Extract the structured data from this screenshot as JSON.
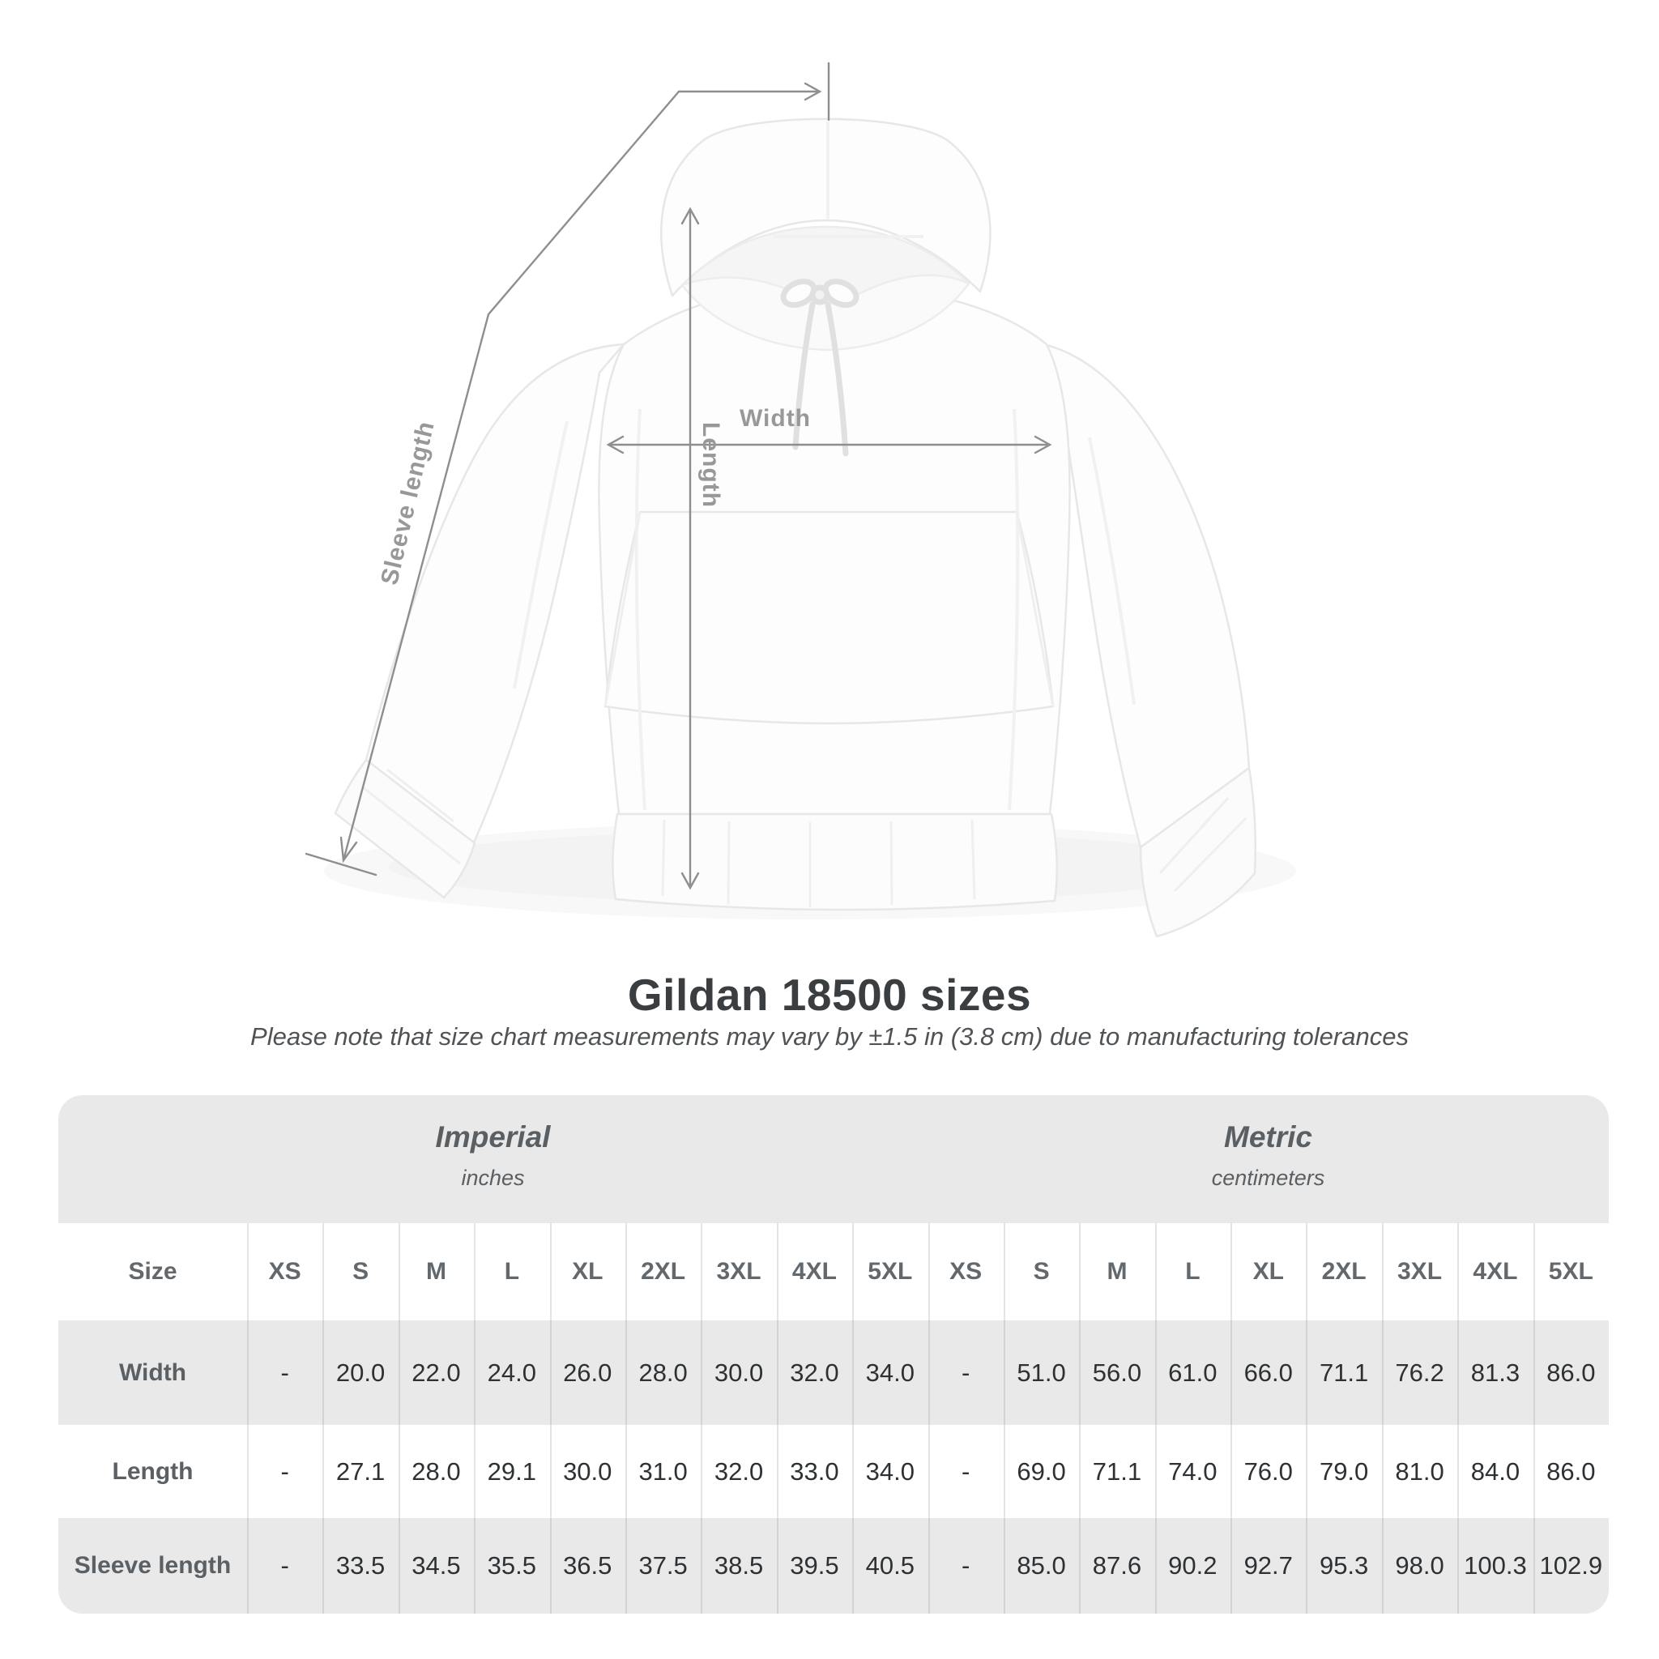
{
  "diagram": {
    "labels": {
      "length": "Length",
      "width": "Width",
      "sleeve": "Sleeve length"
    }
  },
  "heading": {
    "title": "Gildan 18500 sizes",
    "subtitle": "Please note that size chart measurements may vary by ±1.5 in (3.8 cm) due to manufacturing tolerances"
  },
  "size_table": {
    "corner_label": "Size",
    "groups": [
      {
        "system": "Imperial",
        "unit": "inches"
      },
      {
        "system": "Metric",
        "unit": "centimeters"
      }
    ],
    "size_columns": [
      "XS",
      "S",
      "M",
      "L",
      "XL",
      "2XL",
      "3XL",
      "4XL",
      "5XL",
      "XS",
      "S",
      "M",
      "L",
      "XL",
      "2XL",
      "3XL",
      "4XL",
      "5XL"
    ],
    "rows": [
      {
        "label": "Width",
        "values": [
          "-",
          "20.0",
          "22.0",
          "24.0",
          "26.0",
          "28.0",
          "30.0",
          "32.0",
          "34.0",
          "-",
          "51.0",
          "56.0",
          "61.0",
          "66.0",
          "71.1",
          "76.2",
          "81.3",
          "86.0"
        ]
      },
      {
        "label": "Length",
        "values": [
          "-",
          "27.1",
          "28.0",
          "29.1",
          "30.0",
          "31.0",
          "32.0",
          "33.0",
          "34.0",
          "-",
          "69.0",
          "71.1",
          "74.0",
          "76.0",
          "79.0",
          "81.0",
          "84.0",
          "86.0"
        ]
      },
      {
        "label": "Sleeve length",
        "values": [
          "-",
          "33.5",
          "34.5",
          "35.5",
          "36.5",
          "37.5",
          "38.5",
          "39.5",
          "40.5",
          "-",
          "85.0",
          "87.6",
          "90.2",
          "92.7",
          "95.3",
          "98.0",
          "100.3",
          "102.9"
        ]
      }
    ]
  },
  "chart_data": {
    "type": "table",
    "title": "Gildan 18500 sizes",
    "note": "Measurements may vary by ±1.5 in (3.8 cm) due to manufacturing tolerances",
    "sizes": [
      "XS",
      "S",
      "M",
      "L",
      "XL",
      "2XL",
      "3XL",
      "4XL",
      "5XL"
    ],
    "measurements": [
      {
        "name": "Width",
        "imperial_in": [
          null,
          20.0,
          22.0,
          24.0,
          26.0,
          28.0,
          30.0,
          32.0,
          34.0
        ],
        "metric_cm": [
          null,
          51.0,
          56.0,
          61.0,
          66.0,
          71.1,
          76.2,
          81.3,
          86.0
        ]
      },
      {
        "name": "Length",
        "imperial_in": [
          null,
          27.1,
          28.0,
          29.1,
          30.0,
          31.0,
          32.0,
          33.0,
          34.0
        ],
        "metric_cm": [
          null,
          69.0,
          71.1,
          74.0,
          76.0,
          79.0,
          81.0,
          84.0,
          86.0
        ]
      },
      {
        "name": "Sleeve length",
        "imperial_in": [
          null,
          33.5,
          34.5,
          35.5,
          36.5,
          37.5,
          38.5,
          39.5,
          40.5
        ],
        "metric_cm": [
          null,
          85.0,
          87.6,
          90.2,
          92.7,
          95.3,
          98.0,
          100.3,
          102.9
        ]
      }
    ],
    "colors": {
      "band_gray": "#e9e9e9",
      "annotation_gray": "#8e8e8e",
      "title_text": "#3b3e40"
    }
  }
}
